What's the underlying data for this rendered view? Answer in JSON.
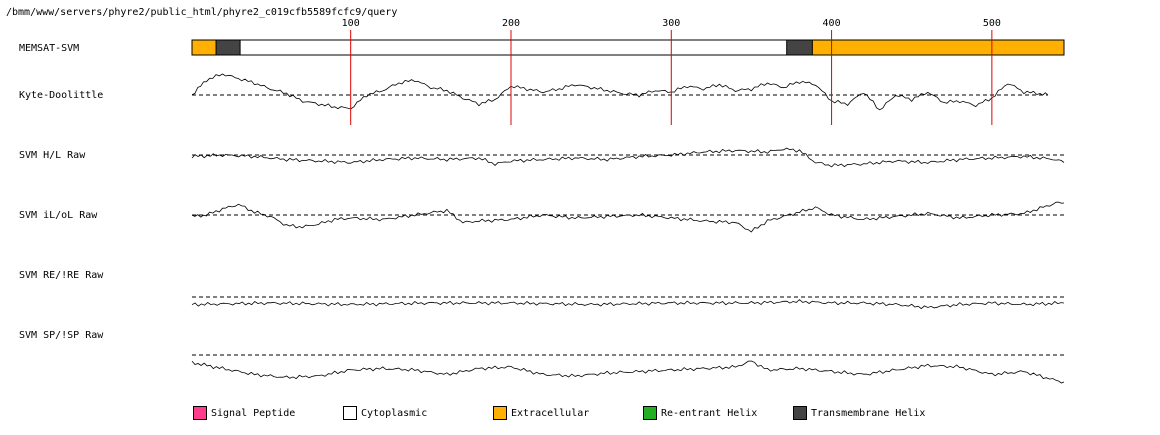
{
  "header": {
    "path": "/bmm/www/servers/phyre2/public_html/phyre2_c019cfb5589fcfc9/query"
  },
  "chart_data": {
    "type": "line",
    "x_range": [
      1,
      545
    ],
    "x_ticks": [
      100,
      200,
      300,
      400,
      500
    ],
    "tracks": [
      {
        "name": "MEMSAT-SVM",
        "kind": "topology",
        "segments": [
          {
            "start": 1,
            "end": 16,
            "type": "Extracellular"
          },
          {
            "start": 16,
            "end": 31,
            "type": "Transmembrane Helix"
          },
          {
            "start": 31,
            "end": 372,
            "type": "Cytoplasmic"
          },
          {
            "start": 372,
            "end": 388,
            "type": "Transmembrane Helix"
          },
          {
            "start": 388,
            "end": 545,
            "type": "Extracellular"
          }
        ]
      },
      {
        "name": "Kyte-Doolittle",
        "kind": "profile",
        "x_end": 535,
        "profile": [
          [
            1,
            0
          ],
          [
            10,
            10
          ],
          [
            20,
            14
          ],
          [
            30,
            11
          ],
          [
            40,
            8
          ],
          [
            50,
            4
          ],
          [
            60,
            1
          ],
          [
            70,
            -4
          ],
          [
            80,
            -6
          ],
          [
            90,
            -8
          ],
          [
            100,
            -9
          ],
          [
            110,
            0
          ],
          [
            120,
            3
          ],
          [
            130,
            8
          ],
          [
            140,
            10
          ],
          [
            150,
            5
          ],
          [
            160,
            3
          ],
          [
            170,
            -2
          ],
          [
            180,
            -6
          ],
          [
            190,
            -3
          ],
          [
            200,
            6
          ],
          [
            210,
            4
          ],
          [
            220,
            2
          ],
          [
            230,
            4
          ],
          [
            240,
            7
          ],
          [
            250,
            5
          ],
          [
            260,
            3
          ],
          [
            270,
            1
          ],
          [
            280,
            0
          ],
          [
            290,
            3
          ],
          [
            300,
            2
          ],
          [
            310,
            6
          ],
          [
            320,
            4
          ],
          [
            330,
            7
          ],
          [
            340,
            3
          ],
          [
            350,
            4
          ],
          [
            360,
            8
          ],
          [
            370,
            5
          ],
          [
            380,
            9
          ],
          [
            390,
            7
          ],
          [
            400,
            -4
          ],
          [
            410,
            -6
          ],
          [
            420,
            2
          ],
          [
            430,
            -10
          ],
          [
            440,
            0
          ],
          [
            450,
            -3
          ],
          [
            460,
            2
          ],
          [
            470,
            -5
          ],
          [
            480,
            -4
          ],
          [
            490,
            -7
          ],
          [
            500,
            -2
          ],
          [
            510,
            8
          ],
          [
            520,
            2
          ],
          [
            530,
            1
          ],
          [
            535,
            0
          ]
        ]
      },
      {
        "name": "SVM H/L Raw",
        "kind": "profile",
        "profile": [
          [
            1,
            -1
          ],
          [
            20,
            0
          ],
          [
            40,
            -1
          ],
          [
            60,
            -3
          ],
          [
            80,
            -4
          ],
          [
            100,
            -5
          ],
          [
            120,
            -3
          ],
          [
            140,
            -2
          ],
          [
            160,
            -3
          ],
          [
            180,
            -2
          ],
          [
            190,
            -6
          ],
          [
            200,
            -4
          ],
          [
            220,
            -3
          ],
          [
            240,
            -2
          ],
          [
            260,
            -3
          ],
          [
            280,
            -1
          ],
          [
            300,
            0
          ],
          [
            320,
            2
          ],
          [
            340,
            3
          ],
          [
            360,
            2
          ],
          [
            370,
            4
          ],
          [
            380,
            3
          ],
          [
            390,
            -5
          ],
          [
            400,
            -7
          ],
          [
            420,
            -6
          ],
          [
            440,
            -4
          ],
          [
            460,
            -5
          ],
          [
            480,
            -3
          ],
          [
            500,
            -2
          ],
          [
            520,
            -1
          ],
          [
            540,
            -3
          ],
          [
            545,
            -5
          ]
        ]
      },
      {
        "name": "SVM iL/oL Raw",
        "kind": "profile",
        "profile": [
          [
            1,
            -1
          ],
          [
            10,
            0
          ],
          [
            20,
            4
          ],
          [
            30,
            7
          ],
          [
            40,
            2
          ],
          [
            50,
            -1
          ],
          [
            60,
            -7
          ],
          [
            70,
            -8
          ],
          [
            80,
            -6
          ],
          [
            90,
            -3
          ],
          [
            100,
            -2
          ],
          [
            120,
            -3
          ],
          [
            140,
            0
          ],
          [
            160,
            3
          ],
          [
            170,
            -5
          ],
          [
            180,
            -4
          ],
          [
            200,
            -3
          ],
          [
            220,
            0
          ],
          [
            240,
            -2
          ],
          [
            260,
            -1
          ],
          [
            280,
            0
          ],
          [
            300,
            -2
          ],
          [
            320,
            -4
          ],
          [
            340,
            -5
          ],
          [
            350,
            -11
          ],
          [
            360,
            -4
          ],
          [
            380,
            2
          ],
          [
            390,
            5
          ],
          [
            400,
            0
          ],
          [
            420,
            -3
          ],
          [
            440,
            -1
          ],
          [
            460,
            1
          ],
          [
            480,
            -2
          ],
          [
            500,
            0
          ],
          [
            520,
            1
          ],
          [
            540,
            8
          ],
          [
            545,
            8
          ]
        ]
      },
      {
        "name": "SVM RE/!RE Raw",
        "kind": "profile",
        "profile": [
          [
            1,
            -5
          ],
          [
            50,
            -4
          ],
          [
            100,
            -5
          ],
          [
            150,
            -4
          ],
          [
            200,
            -4
          ],
          [
            250,
            -5
          ],
          [
            300,
            -4
          ],
          [
            350,
            -4
          ],
          [
            380,
            -3
          ],
          [
            400,
            -4
          ],
          [
            420,
            -4
          ],
          [
            440,
            -5
          ],
          [
            460,
            -7
          ],
          [
            480,
            -5
          ],
          [
            500,
            -4
          ],
          [
            520,
            -5
          ],
          [
            545,
            -4
          ]
        ]
      },
      {
        "name": "SVM SP/!SP Raw",
        "kind": "profile",
        "profile": [
          [
            1,
            -5
          ],
          [
            20,
            -9
          ],
          [
            40,
            -13
          ],
          [
            60,
            -15
          ],
          [
            80,
            -14
          ],
          [
            100,
            -10
          ],
          [
            120,
            -9
          ],
          [
            140,
            -10
          ],
          [
            160,
            -13
          ],
          [
            180,
            -9
          ],
          [
            200,
            -8
          ],
          [
            220,
            -13
          ],
          [
            240,
            -14
          ],
          [
            260,
            -12
          ],
          [
            280,
            -11
          ],
          [
            300,
            -10
          ],
          [
            320,
            -9
          ],
          [
            340,
            -8
          ],
          [
            350,
            -4
          ],
          [
            360,
            -10
          ],
          [
            380,
            -9
          ],
          [
            400,
            -11
          ],
          [
            420,
            -13
          ],
          [
            440,
            -10
          ],
          [
            460,
            -7
          ],
          [
            480,
            -8
          ],
          [
            500,
            -13
          ],
          [
            520,
            -11
          ],
          [
            540,
            -17
          ],
          [
            545,
            -18
          ]
        ]
      }
    ]
  },
  "legend": {
    "items": [
      {
        "label": "Signal Peptide",
        "color": "#ff3d8b"
      },
      {
        "label": "Cytoplasmic",
        "color": "#ffffff"
      },
      {
        "label": "Extracellular",
        "color": "#ffb000"
      },
      {
        "label": "Re-entrant Helix",
        "color": "#22b022"
      },
      {
        "label": "Transmembrane Helix",
        "color": "#444444"
      }
    ]
  }
}
